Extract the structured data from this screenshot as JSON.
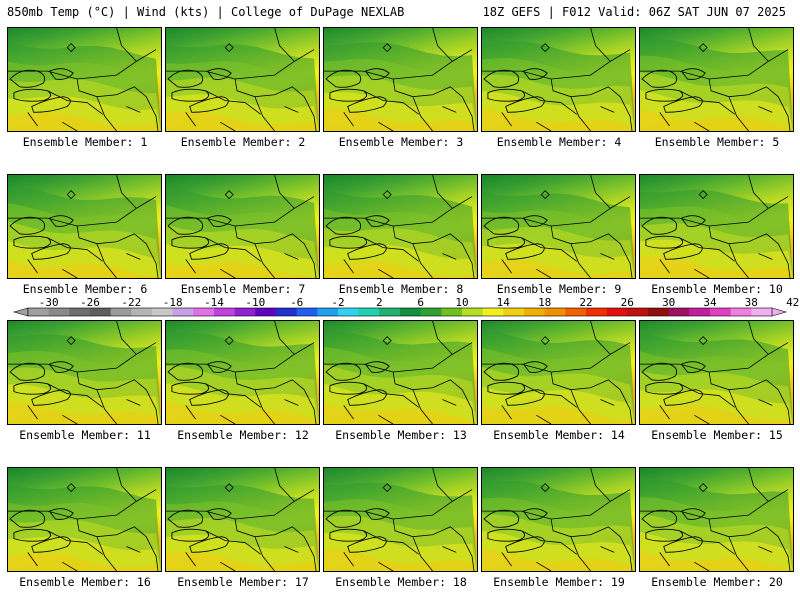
{
  "header": {
    "left": "850mb Temp (°C) | Wind (kts) | College of DuPage NEXLAB",
    "right": "18Z GEFS | F012 Valid: 06Z SAT JUN 07 2025"
  },
  "panels": [
    {
      "label": "Ensemble Member: 1",
      "warmth": 0.55
    },
    {
      "label": "Ensemble Member: 2",
      "warmth": 0.55
    },
    {
      "label": "Ensemble Member: 3",
      "warmth": 0.6
    },
    {
      "label": "Ensemble Member: 4",
      "warmth": 0.55
    },
    {
      "label": "Ensemble Member: 5",
      "warmth": 0.6
    },
    {
      "label": "Ensemble Member: 6",
      "warmth": 0.5
    },
    {
      "label": "Ensemble Member: 7",
      "warmth": 0.5
    },
    {
      "label": "Ensemble Member: 8",
      "warmth": 0.45
    },
    {
      "label": "Ensemble Member: 9",
      "warmth": 0.45
    },
    {
      "label": "Ensemble Member: 10",
      "warmth": 0.6
    },
    {
      "label": "Ensemble Member: 11",
      "warmth": 0.6
    },
    {
      "label": "Ensemble Member: 12",
      "warmth": 0.6
    },
    {
      "label": "Ensemble Member: 13",
      "warmth": 0.65
    },
    {
      "label": "Ensemble Member: 14",
      "warmth": 0.65
    },
    {
      "label": "Ensemble Member: 15",
      "warmth": 0.6
    },
    {
      "label": "Ensemble Member: 16",
      "warmth": 0.5
    },
    {
      "label": "Ensemble Member: 17",
      "warmth": 0.5
    },
    {
      "label": "Ensemble Member: 18",
      "warmth": 0.55
    },
    {
      "label": "Ensemble Member: 19",
      "warmth": 0.55
    },
    {
      "label": "Ensemble Member: 20",
      "warmth": 0.5
    }
  ],
  "colorbar": {
    "labels": [
      "-30",
      "-26",
      "-22",
      "-18",
      "-14",
      "-10",
      "-6",
      "-2",
      "2",
      "6",
      "10",
      "14",
      "18",
      "22",
      "26",
      "30",
      "34",
      "38",
      "42"
    ],
    "colors": [
      "#a0a0a0",
      "#8a8a8a",
      "#6e6e6e",
      "#5e5e5e",
      "#9a9a9a",
      "#b4b4b4",
      "#c8c8c8",
      "#c8a0e8",
      "#e070e8",
      "#c040e0",
      "#9020d0",
      "#6000c0",
      "#2030d0",
      "#2060f0",
      "#20a0f0",
      "#30d0f0",
      "#20d0b0",
      "#20b070",
      "#109040",
      "#30a030",
      "#70c020",
      "#b0e020",
      "#f0f020",
      "#f0d010",
      "#f0b000",
      "#f09000",
      "#f06000",
      "#f03000",
      "#e01010",
      "#c01010",
      "#901010",
      "#a01060",
      "#c020a0",
      "#e040c0",
      "#f080e0",
      "#f0b0f0"
    ]
  }
}
